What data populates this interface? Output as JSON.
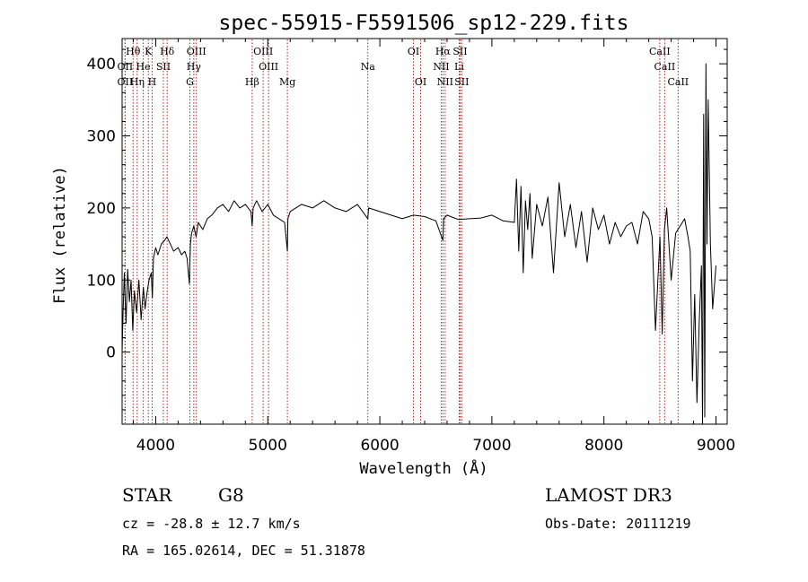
{
  "chart_data": {
    "type": "line",
    "title": "spec-55915-F5591506_sp12-229.fits",
    "xlabel": "Wavelength (Å)",
    "ylabel": "Flux (relative)",
    "xlim": [
      3700,
      9100
    ],
    "ylim": [
      -100,
      435
    ],
    "x_ticks": [
      4000,
      5000,
      6000,
      7000,
      8000,
      9000
    ],
    "y_ticks": [
      0,
      100,
      200,
      300,
      400
    ],
    "series": [
      {
        "name": "flux",
        "x": [
          3700,
          3710,
          3720,
          3735,
          3750,
          3765,
          3780,
          3795,
          3810,
          3830,
          3850,
          3870,
          3890,
          3905,
          3920,
          3940,
          3960,
          3970,
          3980,
          4000,
          4020,
          4050,
          4080,
          4100,
          4130,
          4160,
          4200,
          4230,
          4260,
          4280,
          4300,
          4310,
          4320,
          4340,
          4360,
          4380,
          4420,
          4460,
          4500,
          4550,
          4600,
          4650,
          4700,
          4750,
          4800,
          4850,
          4861,
          4870,
          4900,
          4950,
          5000,
          5050,
          5100,
          5150,
          5175,
          5180,
          5200,
          5300,
          5400,
          5500,
          5600,
          5700,
          5800,
          5893,
          5900,
          6000,
          6100,
          6200,
          6300,
          6400,
          6500,
          6563,
          6570,
          6600,
          6700,
          6800,
          6900,
          7000,
          7100,
          7200,
          7220,
          7240,
          7260,
          7280,
          7300,
          7320,
          7340,
          7360,
          7400,
          7450,
          7500,
          7550,
          7600,
          7650,
          7700,
          7750,
          7800,
          7850,
          7900,
          7950,
          8000,
          8050,
          8100,
          8150,
          8200,
          8250,
          8300,
          8350,
          8400,
          8430,
          8460,
          8500,
          8520,
          8540,
          8560,
          8600,
          8640,
          8680,
          8720,
          8750,
          8770,
          8790,
          8810,
          8830,
          8850,
          8870,
          8880,
          8890,
          8900,
          8910,
          8920,
          8930,
          8950,
          8970,
          9000
        ],
        "values": [
          0,
          60,
          110,
          40,
          115,
          70,
          100,
          30,
          85,
          55,
          100,
          45,
          90,
          60,
          80,
          100,
          110,
          75,
          130,
          145,
          135,
          150,
          155,
          160,
          150,
          140,
          145,
          135,
          140,
          130,
          95,
          150,
          165,
          175,
          160,
          180,
          170,
          185,
          190,
          200,
          205,
          195,
          210,
          200,
          205,
          195,
          175,
          200,
          210,
          195,
          205,
          190,
          185,
          180,
          140,
          185,
          195,
          205,
          200,
          210,
          200,
          195,
          205,
          185,
          200,
          195,
          190,
          185,
          190,
          188,
          182,
          155,
          185,
          190,
          184,
          185,
          186,
          190,
          182,
          180,
          240,
          140,
          230,
          110,
          210,
          170,
          220,
          130,
          205,
          175,
          215,
          110,
          235,
          160,
          205,
          145,
          195,
          125,
          200,
          170,
          190,
          150,
          180,
          160,
          175,
          180,
          150,
          195,
          185,
          160,
          30,
          160,
          25,
          170,
          200,
          100,
          165,
          175,
          185,
          160,
          140,
          -40,
          80,
          -70,
          40,
          120,
          -100,
          330,
          -90,
          400,
          150,
          350,
          150,
          60,
          120
        ]
      }
    ],
    "spectral_lines": [
      {
        "label": "Hθ",
        "x": 3798,
        "row": 1
      },
      {
        "label": "K",
        "x": 3934,
        "row": 1
      },
      {
        "label": "Hδ",
        "x": 4102,
        "row": 1
      },
      {
        "label": "OIII",
        "x": 4363,
        "row": 1
      },
      {
        "label": "OIII",
        "x": 4959,
        "row": 1
      },
      {
        "label": "OI",
        "x": 6300,
        "row": 1
      },
      {
        "label": "Hα",
        "x": 6563,
        "row": 1
      },
      {
        "label": "SII",
        "x": 6716,
        "row": 1
      },
      {
        "label": "CaII",
        "x": 8498,
        "row": 1
      },
      {
        "label": "OII",
        "x": 3727,
        "row": 2
      },
      {
        "label": "He",
        "x": 3889,
        "row": 2
      },
      {
        "label": "SII",
        "x": 4068,
        "row": 2
      },
      {
        "label": "Hγ",
        "x": 4340,
        "row": 2
      },
      {
        "label": "OIII",
        "x": 5007,
        "row": 2
      },
      {
        "label": "Na",
        "x": 5893,
        "row": 2
      },
      {
        "label": "NII",
        "x": 6548,
        "row": 2
      },
      {
        "label": "Li",
        "x": 6708,
        "row": 2
      },
      {
        "label": "CaII",
        "x": 8542,
        "row": 2
      },
      {
        "label": "OII",
        "x": 3727,
        "row": 3
      },
      {
        "label": "Hη",
        "x": 3835,
        "row": 3
      },
      {
        "label": "H",
        "x": 3968,
        "row": 3
      },
      {
        "label": "G",
        "x": 4305,
        "row": 3
      },
      {
        "label": "Hβ",
        "x": 4861,
        "row": 3
      },
      {
        "label": "Mg",
        "x": 5175,
        "row": 3
      },
      {
        "label": "OI",
        "x": 6364,
        "row": 3
      },
      {
        "label": "NII",
        "x": 6583,
        "row": 3
      },
      {
        "label": "SII",
        "x": 6731,
        "row": 3
      },
      {
        "label": "CaII",
        "x": 8662,
        "row": 3
      }
    ]
  },
  "info": {
    "object_class": "STAR",
    "subclass": "G8",
    "survey": "LAMOST DR3",
    "cz": "cz = -28.8 ± 12.7 km/s",
    "obs_date": "Obs-Date: 20111219",
    "coords": "RA = 165.02614, DEC =  51.31878"
  },
  "colors": {
    "spectrum": "#000000",
    "line_markers": "#b22222",
    "axes": "#000000"
  }
}
